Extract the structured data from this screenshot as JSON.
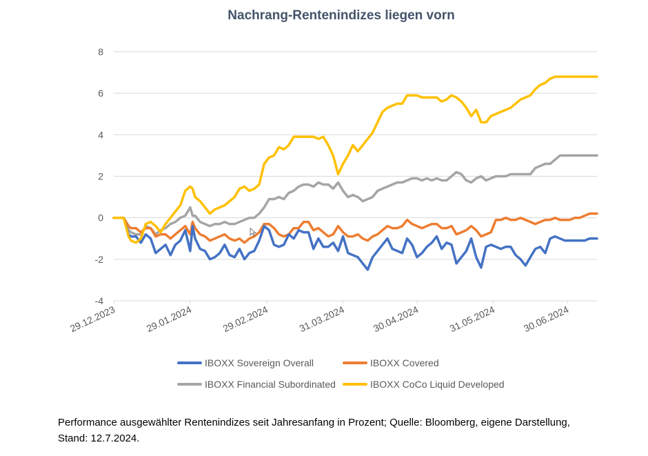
{
  "chart_data": {
    "type": "line",
    "title": "Nachrang-Rentenindizes liegen vorn",
    "xlabel": "",
    "ylabel": "",
    "ylim": [
      -4,
      8
    ],
    "yticks": [
      8,
      6,
      4,
      2,
      0,
      -2,
      -4
    ],
    "ytick_labels": [
      "8",
      "6",
      "4",
      "2",
      "0",
      "-2",
      "-4"
    ],
    "grid": true,
    "legend_position": "bottom",
    "x_start": "29.12.2023",
    "x_end": "12.07.2024",
    "x_tick_labels": [
      "29.12.2023",
      "29.01.2024",
      "29.02.2024",
      "31.03.2024",
      "30.04.2024",
      "31.05.2024",
      "30.06.2024"
    ],
    "x_tick_days": [
      0,
      31,
      62,
      93,
      123,
      154,
      184
    ],
    "x_end_day": 196,
    "series": [
      {
        "name": "IBOXX Sovereign Overall",
        "color": "#4472c4",
        "days": [
          0,
          2,
          4,
          6,
          7,
          9,
          11,
          13,
          15,
          17,
          19,
          21,
          23,
          25,
          27,
          29,
          31,
          32,
          33,
          35,
          37,
          39,
          41,
          43,
          45,
          47,
          49,
          51,
          53,
          55,
          57,
          59,
          61,
          63,
          65,
          67,
          69,
          71,
          73,
          75,
          77,
          79,
          81,
          83,
          85,
          87,
          89,
          91,
          93,
          95,
          97,
          99,
          101,
          103,
          105,
          107,
          109,
          111,
          113,
          115,
          117,
          119,
          121,
          123,
          125,
          127,
          129,
          131,
          133,
          135,
          137,
          139,
          141,
          143,
          145,
          147,
          149,
          151,
          153,
          155,
          157,
          159,
          161,
          163,
          165,
          167,
          169,
          171,
          173,
          175,
          177,
          179,
          181,
          183,
          185,
          187,
          189,
          191,
          193,
          195,
          196
        ],
        "values": [
          0,
          0,
          0,
          -0.8,
          -0.9,
          -0.9,
          -1.2,
          -0.8,
          -1.0,
          -1.7,
          -1.5,
          -1.3,
          -1.8,
          -1.3,
          -1.1,
          -0.6,
          -1.6,
          -0.4,
          -1.0,
          -1.5,
          -1.6,
          -2.0,
          -1.9,
          -1.7,
          -1.3,
          -1.8,
          -1.9,
          -1.5,
          -2.0,
          -1.7,
          -1.6,
          -1.1,
          -0.4,
          -0.6,
          -1.3,
          -1.4,
          -1.3,
          -0.8,
          -1.0,
          -0.6,
          -0.7,
          -0.7,
          -1.5,
          -1.0,
          -1.4,
          -1.4,
          -1.2,
          -1.6,
          -0.9,
          -1.7,
          -1.8,
          -1.9,
          -2.2,
          -2.5,
          -1.9,
          -1.6,
          -1.3,
          -1.0,
          -1.5,
          -1.6,
          -1.7,
          -1.0,
          -1.3,
          -1.9,
          -1.7,
          -1.4,
          -1.2,
          -0.9,
          -1.5,
          -1.2,
          -1.3,
          -2.2,
          -1.9,
          -1.6,
          -1.0,
          -1.9,
          -2.4,
          -1.4,
          -1.3,
          -1.4,
          -1.5,
          -1.4,
          -1.4,
          -1.8,
          -2.0,
          -2.3,
          -1.9,
          -1.5,
          -1.4,
          -1.7,
          -1.0,
          -0.9,
          -1.0,
          -1.1,
          -1.1,
          -1.1,
          -1.1,
          -1.1,
          -1.0,
          -1.0,
          -1.0
        ]
      },
      {
        "name": "IBOXX Covered",
        "color": "#ed7d31",
        "days": [
          0,
          2,
          4,
          6,
          7,
          9,
          11,
          13,
          15,
          17,
          19,
          21,
          23,
          25,
          27,
          29,
          31,
          32,
          33,
          35,
          37,
          39,
          41,
          43,
          45,
          47,
          49,
          51,
          53,
          55,
          57,
          59,
          61,
          63,
          65,
          67,
          69,
          71,
          73,
          75,
          77,
          79,
          81,
          83,
          85,
          87,
          89,
          91,
          93,
          95,
          97,
          99,
          101,
          103,
          105,
          107,
          109,
          111,
          113,
          115,
          117,
          119,
          121,
          123,
          125,
          127,
          129,
          131,
          133,
          135,
          137,
          139,
          141,
          143,
          145,
          147,
          149,
          151,
          153,
          155,
          157,
          159,
          161,
          163,
          165,
          167,
          169,
          171,
          173,
          175,
          177,
          179,
          181,
          183,
          185,
          187,
          189,
          191,
          193,
          195,
          196
        ],
        "values": [
          0,
          0,
          0,
          -0.4,
          -0.5,
          -0.5,
          -0.7,
          -0.5,
          -0.5,
          -0.9,
          -0.8,
          -0.8,
          -1.0,
          -0.8,
          -0.6,
          -0.4,
          -0.8,
          -0.2,
          -0.5,
          -0.8,
          -0.9,
          -1.1,
          -1.0,
          -0.9,
          -0.8,
          -1.0,
          -1.1,
          -1.0,
          -1.2,
          -1.0,
          -0.9,
          -0.7,
          -0.3,
          -0.3,
          -0.5,
          -0.8,
          -0.9,
          -0.8,
          -0.5,
          -0.5,
          -0.2,
          -0.2,
          -0.6,
          -0.5,
          -0.7,
          -0.9,
          -0.8,
          -0.4,
          -0.7,
          -0.9,
          -0.9,
          -0.8,
          -1.0,
          -1.1,
          -0.9,
          -0.8,
          -0.6,
          -0.4,
          -0.5,
          -0.5,
          -0.4,
          -0.1,
          -0.3,
          -0.4,
          -0.5,
          -0.4,
          -0.3,
          -0.3,
          -0.5,
          -0.5,
          -0.4,
          -0.8,
          -0.7,
          -0.6,
          -0.4,
          -0.6,
          -0.9,
          -0.8,
          -0.7,
          -0.1,
          -0.1,
          0,
          -0.1,
          -0.1,
          0,
          -0.1,
          -0.2,
          -0.3,
          -0.2,
          -0.1,
          -0.1,
          0,
          -0.1,
          -0.1,
          -0.1,
          0,
          0,
          0.1,
          0.2,
          0.2,
          0.2
        ]
      },
      {
        "name": "IBOXX Financial Subordinated",
        "color": "#a5a5a5",
        "days": [
          0,
          2,
          4,
          6,
          7,
          9,
          11,
          13,
          15,
          17,
          19,
          21,
          23,
          25,
          27,
          29,
          31,
          32,
          33,
          35,
          37,
          39,
          41,
          43,
          45,
          47,
          49,
          51,
          53,
          55,
          57,
          59,
          61,
          63,
          65,
          67,
          69,
          71,
          73,
          75,
          77,
          79,
          81,
          83,
          85,
          87,
          89,
          91,
          93,
          95,
          97,
          99,
          101,
          103,
          105,
          107,
          109,
          111,
          113,
          115,
          117,
          119,
          121,
          123,
          125,
          127,
          129,
          131,
          133,
          135,
          137,
          139,
          141,
          143,
          145,
          147,
          149,
          151,
          153,
          155,
          157,
          159,
          161,
          163,
          165,
          167,
          169,
          171,
          173,
          175,
          177,
          179,
          181,
          183,
          185,
          187,
          189,
          191,
          193,
          195,
          196
        ],
        "values": [
          0,
          0,
          0,
          -0.6,
          -0.7,
          -0.8,
          -0.8,
          -0.4,
          -0.5,
          -0.8,
          -0.6,
          -0.5,
          -0.3,
          -0.2,
          0,
          0.1,
          0.5,
          0.1,
          0.1,
          -0.2,
          -0.3,
          -0.4,
          -0.3,
          -0.3,
          -0.2,
          -0.3,
          -0.3,
          -0.2,
          -0.1,
          0,
          0,
          0.2,
          0.5,
          0.9,
          0.9,
          1.0,
          0.9,
          1.2,
          1.3,
          1.5,
          1.6,
          1.6,
          1.5,
          1.7,
          1.6,
          1.6,
          1.4,
          1.7,
          1.3,
          1.0,
          1.1,
          1.0,
          0.8,
          0.9,
          1.0,
          1.3,
          1.4,
          1.5,
          1.6,
          1.7,
          1.7,
          1.8,
          1.9,
          1.9,
          1.8,
          1.9,
          1.8,
          1.9,
          1.8,
          1.8,
          2.0,
          2.2,
          2.1,
          1.8,
          1.7,
          1.9,
          2.0,
          1.8,
          1.9,
          2.0,
          2.0,
          2.0,
          2.1,
          2.1,
          2.1,
          2.1,
          2.1,
          2.4,
          2.5,
          2.6,
          2.6,
          2.8,
          3.0,
          3.0,
          3.0,
          3.0,
          3.0,
          3.0,
          3.0,
          3.0,
          3.0
        ]
      },
      {
        "name": "IBOXX CoCo Liquid Developed",
        "color": "#ffc000",
        "days": [
          0,
          2,
          4,
          6,
          7,
          9,
          11,
          13,
          15,
          17,
          19,
          21,
          23,
          25,
          27,
          29,
          31,
          32,
          33,
          35,
          37,
          39,
          41,
          43,
          45,
          47,
          49,
          51,
          53,
          55,
          57,
          59,
          61,
          63,
          65,
          67,
          69,
          71,
          73,
          75,
          77,
          79,
          81,
          83,
          85,
          87,
          89,
          91,
          93,
          95,
          97,
          99,
          101,
          103,
          105,
          107,
          109,
          111,
          113,
          115,
          117,
          119,
          121,
          123,
          125,
          127,
          129,
          131,
          133,
          135,
          137,
          139,
          141,
          143,
          145,
          147,
          149,
          151,
          153,
          155,
          157,
          159,
          161,
          163,
          165,
          167,
          169,
          171,
          173,
          175,
          177,
          179,
          181,
          183,
          185,
          187,
          189,
          191,
          193,
          195,
          196
        ],
        "values": [
          0,
          0,
          0,
          -0.9,
          -1.1,
          -1.2,
          -1.0,
          -0.3,
          -0.2,
          -0.4,
          -0.7,
          -0.3,
          0,
          0.3,
          0.6,
          1.3,
          1.5,
          1.4,
          1.0,
          0.8,
          0.5,
          0.2,
          0.4,
          0.5,
          0.6,
          0.8,
          1.0,
          1.4,
          1.5,
          1.3,
          1.4,
          1.6,
          2.6,
          2.9,
          3.0,
          3.4,
          3.3,
          3.5,
          3.9,
          3.9,
          3.9,
          3.9,
          3.9,
          3.8,
          3.9,
          3.5,
          3.0,
          2.1,
          2.6,
          3.0,
          3.5,
          3.2,
          3.5,
          3.8,
          4.1,
          4.6,
          5.1,
          5.3,
          5.4,
          5.5,
          5.5,
          5.9,
          5.9,
          5.9,
          5.8,
          5.8,
          5.8,
          5.8,
          5.6,
          5.7,
          5.9,
          5.8,
          5.6,
          5.3,
          4.9,
          5.2,
          4.6,
          4.6,
          4.9,
          5.0,
          5.1,
          5.2,
          5.3,
          5.5,
          5.7,
          5.8,
          5.9,
          6.2,
          6.4,
          6.5,
          6.7,
          6.8,
          6.8,
          6.8,
          6.8,
          6.8,
          6.8,
          6.8,
          6.8,
          6.8,
          6.8
        ]
      }
    ]
  },
  "legend": {
    "items": [
      {
        "label": "IBOXX Sovereign Overall",
        "color": "#4472c4"
      },
      {
        "label": "IBOXX Covered",
        "color": "#ed7d31"
      },
      {
        "label": "IBOXX Financial Subordinated",
        "color": "#a5a5a5"
      },
      {
        "label": "IBOXX CoCo Liquid Developed",
        "color": "#ffc000"
      }
    ]
  },
  "caption": {
    "line1": "Performance ausgewählter Rentenindizes seit Jahresanfang in Prozent; Quelle: Bloomberg, eigene Darstellung,",
    "line2": "Stand: 12.7.2024."
  }
}
